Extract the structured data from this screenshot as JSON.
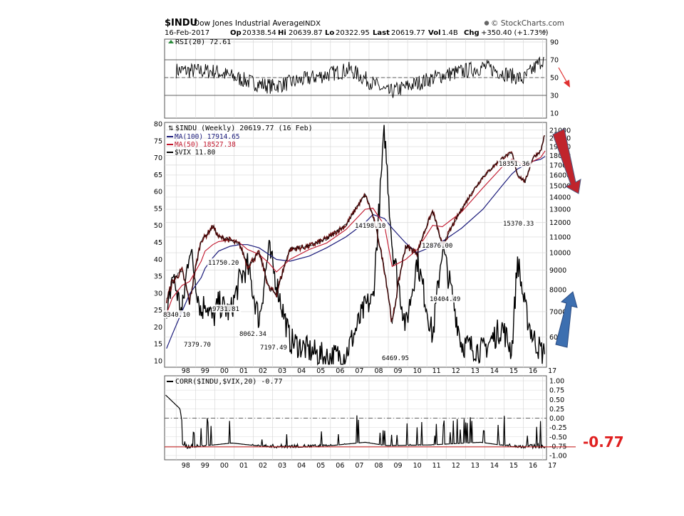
{
  "header": {
    "symbol": "$INDU",
    "name": "Dow Jones Industrial Average",
    "exchange": "INDX",
    "brand": "© StockCharts.com",
    "date": "16-Feb-2017",
    "op_label": "Op",
    "op": "20338.54",
    "hi_label": "Hi",
    "hi": "20639.87",
    "lo_label": "Lo",
    "lo": "20322.95",
    "last_label": "Last",
    "last": "20619.77",
    "vol_label": "Vol",
    "vol": "1.4B",
    "chg_label": "Chg",
    "chg": "+350.40 (+1.73%)"
  },
  "rsi_panel": {
    "legend": "RSI(20) 72.61",
    "ticks": [
      "90",
      "70",
      "50",
      "30",
      "10"
    ]
  },
  "main_panel": {
    "legend_title": "$INDU (Weekly) 20619.77 (16 Feb)",
    "legend_ma100": "MA(100) 17914.65",
    "legend_ma50": "MA(50) 18527.38",
    "legend_vix": "$VIX 11.80",
    "left_ticks": [
      "80",
      "75",
      "70",
      "65",
      "60",
      "55",
      "50",
      "45",
      "40",
      "35",
      "30",
      "25",
      "20",
      "15",
      "10"
    ],
    "right_ticks": [
      "21000",
      "20000",
      "19000",
      "18000",
      "17000",
      "16000",
      "15000",
      "14000",
      "13000",
      "12000",
      "11000",
      "10000",
      "9000",
      "8000",
      "7000",
      "6000"
    ],
    "x_ticks": [
      "98",
      "99",
      "00",
      "01",
      "02",
      "03",
      "04",
      "05",
      "06",
      "07",
      "08",
      "09",
      "10",
      "11",
      "12",
      "13",
      "14",
      "15",
      "16",
      "17"
    ],
    "annotations": [
      "8340.10",
      "7379.70",
      "11750.20",
      "9731.81",
      "8062.34",
      "7197.49",
      "14198.10",
      "6469.95",
      "12876.00",
      "10404.49",
      "18351.36",
      "15370.33"
    ]
  },
  "corr_panel": {
    "legend": "CORR($INDU,$VIX,20) -0.77",
    "ticks": [
      "1.00",
      "0.75",
      "0.50",
      "0.25",
      "0.00",
      "-0.25",
      "-0.50",
      "-0.75",
      "-1.00"
    ],
    "x_ticks": [
      "98",
      "99",
      "00",
      "01",
      "02",
      "03",
      "04",
      "05",
      "06",
      "07",
      "08",
      "09",
      "10",
      "11",
      "12",
      "13",
      "14",
      "15",
      "16",
      "17"
    ],
    "callout": "-0.77"
  },
  "colors": {
    "price": "#000000",
    "ma100": "#1a1a7a",
    "ma50": "#c0142a",
    "vix": "#000000",
    "arrow_down": "#c0242c",
    "arrow_up": "#3d6fb0",
    "callout": "#e02020",
    "grid": "#d8d8d8"
  },
  "chart_data": [
    {
      "type": "line",
      "title": "RSI(20) 72.61",
      "ylim": [
        0,
        100
      ],
      "series": [
        {
          "name": "RSI(20)",
          "x": [
            1998,
            2000,
            2002,
            2003,
            2007,
            2009,
            2011.7,
            2014,
            2016,
            2017.1
          ],
          "values": [
            58,
            57,
            44,
            40,
            59,
            33,
            52,
            62,
            48,
            72.61
          ]
        }
      ]
    },
    {
      "type": "line",
      "title": "$INDU (Weekly) 20619.77 (16 Feb)",
      "xlim": [
        1997.4,
        2017.2
      ],
      "ylim_price": [
        5000,
        22000
      ],
      "ylim_vix": [
        8,
        82
      ],
      "x": [
        1997.5,
        1997.8,
        1998.3,
        1998.7,
        1999.3,
        1999.5,
        1999.9,
        2000.2,
        2000.8,
        2001.3,
        2001.7,
        2002.3,
        2002.8,
        2003.2,
        2003.9,
        2004.9,
        2005.8,
        2006.8,
        2007.8,
        2008.2,
        2008.8,
        2009.2,
        2009.9,
        2010.5,
        2011.3,
        2011.8,
        2012.8,
        2013.9,
        2014.9,
        2015.4,
        2015.7,
        2016.1,
        2016.5,
        2016.9,
        2017.13
      ],
      "series": [
        {
          "name": "$INDU",
          "axis": "price",
          "values": [
            7500,
            8340.1,
            9000,
            7379.7,
            10800,
            11000,
            11750.2,
            11000,
            10800,
            10500,
            9200,
            10000,
            8062.34,
            7800,
            10200,
            10400,
            10900,
            11800,
            14198.1,
            12500,
            9000,
            6469.95,
            10400,
            10000,
            12876.0,
            10404.49,
            13000,
            15800,
            17700,
            18351.36,
            16000,
            15370.33,
            17800,
            18500,
            20619.77
          ]
        },
        {
          "name": "MA(100) 17914.65",
          "axis": "price",
          "values": [
            5600,
            6100,
            7000,
            7800,
            8600,
            9100,
            9700,
            10100,
            10400,
            10500,
            10500,
            10300,
            9900,
            9600,
            9500,
            9800,
            10300,
            11000,
            12000,
            12600,
            12300,
            11600,
            10600,
            10000,
            10400,
            10700,
            11600,
            13000,
            15000,
            16100,
            16600,
            17000,
            17400,
            17600,
            17914.65
          ]
        },
        {
          "name": "MA(50) 18527.38",
          "axis": "price",
          "values": [
            6900,
            7600,
            8200,
            8400,
            9500,
            10100,
            10500,
            10700,
            10800,
            10600,
            10200,
            9900,
            9400,
            8900,
            9600,
            10200,
            10600,
            11500,
            13000,
            13100,
            11800,
            9200,
            9600,
            10200,
            11800,
            11700,
            12800,
            14800,
            16800,
            17600,
            17400,
            16900,
            17400,
            17800,
            18527.38
          ]
        },
        {
          "name": "$VIX 11.80",
          "axis": "vix",
          "values": [
            20,
            36,
            24,
            44,
            24,
            28,
            22,
            27,
            24,
            34,
            38,
            22,
            43,
            33,
            16,
            13,
            11,
            12,
            26,
            28,
            78,
            44,
            20,
            40,
            17,
            44,
            15,
            13,
            20,
            13,
            40,
            25,
            17,
            13,
            11.8
          ]
        }
      ]
    },
    {
      "type": "line",
      "title": "CORR($INDU,$VIX,20) -0.77",
      "ylim": [
        -1.05,
        1.05
      ],
      "series": [
        {
          "name": "CORR($INDU,$VIX,20)",
          "x": [
            1997.45,
            1998.2,
            1998.5,
            1999.5,
            2000.9,
            2003.2,
            2005.4,
            2007.8,
            2008.9,
            2011.2,
            2013.8,
            2015.9,
            2017.13
          ],
          "values": [
            0.62,
            0.25,
            -0.78,
            -0.42,
            -0.05,
            -0.7,
            -0.55,
            0.05,
            -0.4,
            -0.3,
            0.05,
            -0.7,
            -0.77
          ]
        }
      ]
    }
  ]
}
